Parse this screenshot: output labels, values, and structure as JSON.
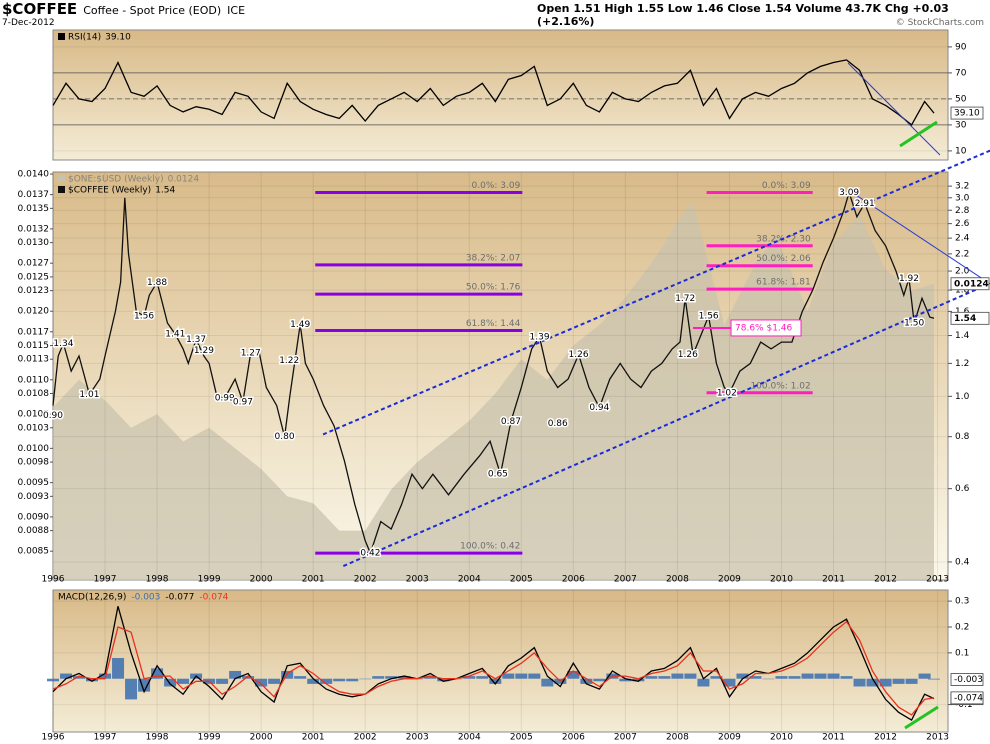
{
  "header": {
    "symbol": "$COFFEE",
    "name": "Coffee - Spot Price (EOD)",
    "exchange": "ICE",
    "date": "7-Dec-2012",
    "quote": "Open 1.51 High 1.55 Low 1.46 Close 1.54 Volume 43.7K Chg +0.03 (+2.16%)",
    "credit": "© StockCharts.com"
  },
  "chart_data": [
    {
      "type": "line",
      "x": [
        1996,
        1996.25,
        1996.5,
        1996.75,
        1997,
        1997.25,
        1997.5,
        1997.75,
        1998,
        1998.25,
        1998.5,
        1998.75,
        1999,
        1999.25,
        1999.5,
        1999.75,
        2000,
        2000.25,
        2000.5,
        2000.75,
        2001,
        2001.25,
        2001.5,
        2001.75,
        2002,
        2002.25,
        2002.5,
        2002.75,
        2003,
        2003.25,
        2003.5,
        2003.75,
        2004,
        2004.25,
        2004.5,
        2004.75,
        2005,
        2005.25,
        2005.5,
        2005.75,
        2006,
        2006.25,
        2006.5,
        2006.75,
        2007,
        2007.25,
        2007.5,
        2007.75,
        2008,
        2008.25,
        2008.5,
        2008.75,
        2009,
        2009.25,
        2009.5,
        2009.75,
        2010,
        2010.25,
        2010.5,
        2010.75,
        2011,
        2011.25,
        2011.5,
        2011.75,
        2012,
        2012.25,
        2012.5,
        2012.75,
        2012.93
      ],
      "series": [
        {
          "name": "RSI(14)",
          "color": "#000000",
          "last_value": 39.1,
          "last_value_label": "39.10",
          "values": [
            45,
            62,
            50,
            48,
            58,
            78,
            55,
            52,
            60,
            45,
            40,
            44,
            42,
            38,
            55,
            52,
            40,
            35,
            62,
            48,
            42,
            38,
            35,
            45,
            33,
            45,
            50,
            55,
            48,
            58,
            45,
            52,
            55,
            62,
            48,
            65,
            68,
            75,
            45,
            50,
            62,
            45,
            40,
            55,
            50,
            48,
            55,
            60,
            62,
            72,
            45,
            58,
            35,
            50,
            55,
            52,
            58,
            62,
            70,
            75,
            78,
            80,
            72,
            50,
            45,
            38,
            30,
            48,
            39.1
          ]
        }
      ],
      "xlim": [
        1996,
        2013.2
      ],
      "ylim": [
        3,
        103
      ],
      "yticks": [
        90,
        70,
        50,
        30,
        10
      ],
      "levels": [
        70,
        30
      ],
      "midline": 50
    },
    {
      "type": "line",
      "log_scale": true,
      "series": [
        {
          "name": "$ONE:$USD (Weekly)",
          "kind": "area",
          "axis": "y2",
          "color": "#c9c3ad",
          "last_value": 0.0124,
          "x": [
            1996,
            1996.5,
            1997,
            1997.5,
            1998,
            1998.5,
            1999,
            1999.5,
            2000,
            2000.5,
            2001,
            2001.5,
            2002,
            2002.5,
            2003,
            2003.5,
            2004,
            2004.5,
            2005,
            2005.5,
            2006,
            2006.5,
            2007,
            2007.5,
            2008,
            2008.3,
            2008.9,
            2009.5,
            2009.9,
            2010.5,
            2011,
            2011.5,
            2012,
            2012.5,
            2012.93
          ],
          "values": [
            0.0106,
            0.011,
            0.0107,
            0.0103,
            0.0105,
            0.0101,
            0.0103,
            0.01,
            0.0097,
            0.0093,
            0.0092,
            0.0088,
            0.0088,
            0.0094,
            0.0098,
            0.0101,
            0.0104,
            0.0108,
            0.0113,
            0.011,
            0.0115,
            0.0118,
            0.0122,
            0.0127,
            0.0133,
            0.0136,
            0.0118,
            0.0127,
            0.0131,
            0.012,
            0.013,
            0.0134,
            0.0126,
            0.0123,
            0.0124
          ]
        },
        {
          "name": "$COFFEE (Weekly)",
          "color": "#111111",
          "last_value": 1.54,
          "x": [
            1996.0,
            1996.1,
            1996.2,
            1996.35,
            1996.5,
            1996.7,
            1996.9,
            1997.0,
            1997.2,
            1997.3,
            1997.38,
            1997.45,
            1997.6,
            1997.75,
            1997.85,
            1998.0,
            1998.2,
            1998.35,
            1998.5,
            1998.6,
            1998.75,
            1998.9,
            1999.0,
            1999.15,
            1999.3,
            1999.5,
            1999.65,
            1999.8,
            1999.95,
            2000.1,
            2000.3,
            2000.45,
            2000.55,
            2000.75,
            2000.85,
            2001.0,
            2001.2,
            2001.4,
            2001.6,
            2001.8,
            2002.0,
            2002.1,
            2002.3,
            2002.5,
            2002.7,
            2002.9,
            2003.1,
            2003.3,
            2003.6,
            2003.9,
            2004.2,
            2004.4,
            2004.6,
            2004.8,
            2005.0,
            2005.2,
            2005.35,
            2005.5,
            2005.7,
            2005.9,
            2006.1,
            2006.3,
            2006.5,
            2006.7,
            2006.9,
            2007.1,
            2007.3,
            2007.5,
            2007.7,
            2007.9,
            2008.05,
            2008.15,
            2008.3,
            2008.45,
            2008.6,
            2008.75,
            2008.9,
            2009.0,
            2009.2,
            2009.4,
            2009.6,
            2009.8,
            2010.0,
            2010.2,
            2010.4,
            2010.6,
            2010.8,
            2011.0,
            2011.2,
            2011.3,
            2011.45,
            2011.6,
            2011.8,
            2012.0,
            2012.2,
            2012.35,
            2012.45,
            2012.55,
            2012.7,
            2012.85,
            2012.93
          ],
          "values": [
            0.95,
            1.25,
            1.34,
            1.15,
            1.25,
            1.01,
            1.1,
            1.25,
            1.6,
            1.88,
            3.0,
            2.2,
            1.6,
            1.56,
            1.75,
            1.88,
            1.5,
            1.41,
            1.3,
            1.2,
            1.37,
            1.25,
            1.2,
            1.0,
            0.99,
            1.1,
            0.97,
            1.27,
            1.3,
            1.05,
            0.95,
            0.8,
            1.0,
            1.49,
            1.2,
            1.1,
            0.95,
            0.85,
            0.7,
            0.55,
            0.45,
            0.42,
            0.5,
            0.48,
            0.55,
            0.65,
            0.6,
            0.65,
            0.58,
            0.65,
            0.72,
            0.78,
            0.65,
            0.87,
            1.05,
            1.3,
            1.39,
            1.15,
            1.05,
            1.1,
            1.26,
            1.05,
            0.94,
            1.1,
            1.2,
            1.1,
            1.05,
            1.15,
            1.2,
            1.3,
            1.35,
            1.72,
            1.26,
            1.4,
            1.56,
            1.2,
            1.05,
            1.02,
            1.15,
            1.2,
            1.35,
            1.3,
            1.35,
            1.35,
            1.6,
            1.8,
            2.1,
            2.4,
            2.8,
            3.09,
            2.7,
            2.91,
            2.5,
            2.3,
            2.0,
            1.75,
            1.92,
            1.5,
            1.72,
            1.55,
            1.54
          ]
        }
      ],
      "xlim": [
        1996,
        2013.2
      ],
      "xticks": [
        1996,
        1997,
        1998,
        1999,
        2000,
        2001,
        2002,
        2003,
        2004,
        2005,
        2006,
        2007,
        2008,
        2009,
        2010,
        2011,
        2012,
        2013
      ],
      "ylim": [
        0.362,
        3.46
      ],
      "yticks": [
        0.4,
        0.6,
        0.8,
        {
          "value": 1.0,
          "label": "1.0"
        },
        1.2,
        1.4,
        1.6,
        1.8,
        {
          "value": 2.0,
          "label": "2.0"
        },
        2.2,
        2.4,
        2.6,
        2.8,
        {
          "value": 3.0,
          "label": "3.0"
        },
        3.2
      ],
      "y2lim": [
        0.00808,
        0.01403
      ],
      "y2ticks": [
        {
          "value": 0.014,
          "label": "0.0140"
        },
        0.0137,
        0.0135,
        0.0132,
        {
          "value": 0.013,
          "label": "0.0130"
        },
        0.0127,
        0.0125,
        0.0123,
        {
          "value": 0.012,
          "label": "0.0120"
        },
        0.0117,
        0.0115,
        0.0113,
        {
          "value": 0.011,
          "label": "0.0110"
        },
        0.0108,
        0.0105,
        0.0103,
        {
          "value": 0.01,
          "label": "0.0100"
        },
        0.0098,
        0.0095,
        0.0093,
        {
          "value": 0.009,
          "label": "0.0090"
        },
        0.0088,
        0.0085
      ],
      "price_labels": {
        "x": [
          1996.0,
          1996.2,
          1996.7,
          1998.0,
          1997.75,
          1998.35,
          1998.75,
          1998.9,
          1999.3,
          1999.65,
          1999.8,
          2000.75,
          2000.45,
          2000.54,
          2002.1,
          2004.55,
          2004.8,
          2005.35,
          2005.7,
          2006.1,
          2006.5,
          2008.15,
          2008.2,
          2008.6,
          2008.95,
          2011.3,
          2011.6,
          2012.45,
          2012.55
        ],
        "values": [
          0.9,
          1.34,
          1.01,
          1.88,
          1.56,
          1.41,
          1.37,
          1.29,
          0.99,
          0.97,
          1.27,
          1.49,
          0.8,
          1.22,
          0.42,
          0.65,
          0.87,
          1.39,
          0.86,
          1.26,
          0.94,
          1.72,
          1.26,
          1.56,
          1.02,
          3.09,
          2.91,
          1.92,
          1.5
        ],
        "value_labels": [
          "0.90",
          "1.34",
          "1.01",
          "1.88",
          "1.56",
          "1.41",
          "1.37",
          "1.29",
          "0.99",
          "0.97",
          "1.27",
          "1.49",
          "0.80",
          "1.22",
          "0.42",
          "0.65",
          "0.87",
          "1.39",
          "0.86",
          "1.26",
          "0.94",
          "1.72",
          "1.26",
          "1.56",
          "1.02",
          "3.09",
          "2.91",
          "1.92",
          "1.50"
        ]
      },
      "fibonacci": [
        {
          "color": "#8a00e6",
          "x": [
            2001.04,
            2005.02
          ],
          "labels": [
            "0.0%: 3.09",
            "38.2%: 2.07",
            "50.0%: 1.76",
            "61.8%: 1.44",
            "100.0%: 0.42"
          ],
          "values": [
            3.09,
            2.07,
            1.76,
            1.44,
            0.42
          ]
        },
        {
          "color": "#ff1fbf",
          "x": [
            2008.56,
            2010.6
          ],
          "labels": [
            "0.0%: 3.09",
            "38.2%: 2.30",
            "50.0%: 2.06",
            "61.8%: 1.81",
            "100.0%: 1.02"
          ],
          "values": [
            3.09,
            2.3,
            2.06,
            1.81,
            1.02
          ]
        }
      ],
      "retracement": {
        "x": 2008.3,
        "value": 1.46,
        "label": "78.6% $1.46",
        "color": "#ff1fbf"
      },
      "trendlines": [
        {
          "color": "#1a2bd8",
          "dashed": true,
          "x": [
            2001.19,
            2014.02
          ],
          "values": [
            0.81,
            3.9
          ]
        },
        {
          "color": "#1a2bd8",
          "dashed": true,
          "x": [
            2001.58,
            2014.02
          ],
          "values": [
            0.391,
            1.87
          ]
        },
        {
          "color": "#2a3ad8",
          "dashed": false,
          "x": [
            2011.29,
            2014.02
          ],
          "values": [
            3.13,
            1.86
          ]
        }
      ]
    },
    {
      "type": "line",
      "title": "MACD(12,26,9)",
      "x": [
        1996,
        1996.25,
        1996.5,
        1996.75,
        1997,
        1997.25,
        1997.5,
        1997.75,
        1998,
        1998.25,
        1998.5,
        1998.75,
        1999,
        1999.25,
        1999.5,
        1999.75,
        2000,
        2000.25,
        2000.5,
        2000.75,
        2001,
        2001.25,
        2001.5,
        2001.75,
        2002,
        2002.25,
        2002.5,
        2002.75,
        2003,
        2003.25,
        2003.5,
        2003.75,
        2004,
        2004.25,
        2004.5,
        2004.75,
        2005,
        2005.25,
        2005.5,
        2005.75,
        2006,
        2006.25,
        2006.5,
        2006.75,
        2007,
        2007.25,
        2007.5,
        2007.75,
        2008,
        2008.25,
        2008.5,
        2008.75,
        2009,
        2009.25,
        2009.5,
        2009.75,
        2010,
        2010.25,
        2010.5,
        2010.75,
        2011,
        2011.25,
        2011.5,
        2011.75,
        2012,
        2012.25,
        2012.5,
        2012.75,
        2012.93
      ],
      "series": [
        {
          "kind": "histogram",
          "color": "#3a6fb0",
          "last_value": -0.003,
          "values": [
            -0.01,
            0.02,
            0.01,
            -0.01,
            0.02,
            0.08,
            -0.08,
            -0.05,
            0.04,
            -0.03,
            -0.02,
            0.02,
            -0.02,
            -0.02,
            0.03,
            0.01,
            -0.03,
            -0.02,
            0.03,
            0.01,
            -0.02,
            -0.02,
            -0.01,
            -0.01,
            0.0,
            0.01,
            0.01,
            0.01,
            0.0,
            0.01,
            -0.01,
            0.0,
            0.01,
            0.01,
            -0.02,
            0.02,
            0.02,
            0.02,
            -0.03,
            -0.02,
            0.03,
            -0.02,
            -0.01,
            0.02,
            -0.01,
            -0.01,
            0.01,
            0.01,
            0.02,
            0.02,
            -0.03,
            0.01,
            -0.03,
            0.02,
            0.01,
            0.0,
            0.01,
            0.01,
            0.02,
            0.02,
            0.02,
            0.01,
            -0.03,
            -0.03,
            -0.03,
            -0.02,
            -0.02,
            0.02,
            -0.003
          ]
        },
        {
          "color": "#000000",
          "last_value": -0.077,
          "values": [
            -0.05,
            0.0,
            0.02,
            -0.01,
            0.02,
            0.28,
            0.1,
            -0.05,
            0.05,
            -0.02,
            -0.06,
            0.01,
            -0.03,
            -0.08,
            0.0,
            0.02,
            -0.05,
            -0.09,
            0.05,
            0.06,
            0.0,
            -0.04,
            -0.06,
            -0.07,
            -0.06,
            -0.02,
            0.0,
            0.01,
            0.0,
            0.02,
            -0.01,
            0.0,
            0.02,
            0.04,
            -0.02,
            0.05,
            0.08,
            0.12,
            0.01,
            -0.03,
            0.06,
            -0.02,
            -0.04,
            0.03,
            0.0,
            -0.01,
            0.03,
            0.04,
            0.07,
            0.12,
            0.0,
            0.04,
            -0.07,
            0.0,
            0.03,
            0.02,
            0.04,
            0.06,
            0.1,
            0.15,
            0.2,
            0.23,
            0.12,
            0.0,
            -0.08,
            -0.13,
            -0.16,
            -0.06,
            -0.077
          ]
        },
        {
          "color": "#e8321f",
          "last_value": -0.074,
          "values": [
            -0.04,
            -0.02,
            0.01,
            0.0,
            0.0,
            0.2,
            0.18,
            0.0,
            0.01,
            0.01,
            -0.04,
            -0.01,
            -0.01,
            -0.06,
            -0.03,
            0.01,
            -0.02,
            -0.07,
            0.02,
            0.05,
            0.02,
            -0.02,
            -0.05,
            -0.06,
            -0.06,
            -0.03,
            -0.01,
            0.0,
            0.0,
            0.01,
            0.0,
            0.0,
            0.01,
            0.03,
            0.0,
            0.03,
            0.06,
            0.1,
            0.04,
            -0.01,
            0.03,
            0.0,
            -0.03,
            0.01,
            0.01,
            0.0,
            0.02,
            0.03,
            0.05,
            0.1,
            0.03,
            0.03,
            -0.04,
            -0.02,
            0.02,
            0.02,
            0.03,
            0.05,
            0.08,
            0.13,
            0.18,
            0.22,
            0.15,
            0.03,
            -0.05,
            -0.11,
            -0.14,
            -0.08,
            -0.074
          ]
        }
      ],
      "xlim": [
        1996,
        2013.2
      ],
      "xticks": [
        1996,
        1997,
        1998,
        1999,
        2000,
        2001,
        2002,
        2003,
        2004,
        2005,
        2006,
        2007,
        2008,
        2009,
        2010,
        2011,
        2012,
        2013
      ],
      "ylim": [
        -0.206,
        0.343
      ],
      "yticks": [
        0.3,
        0.2,
        0.1,
        -0.1
      ]
    }
  ]
}
